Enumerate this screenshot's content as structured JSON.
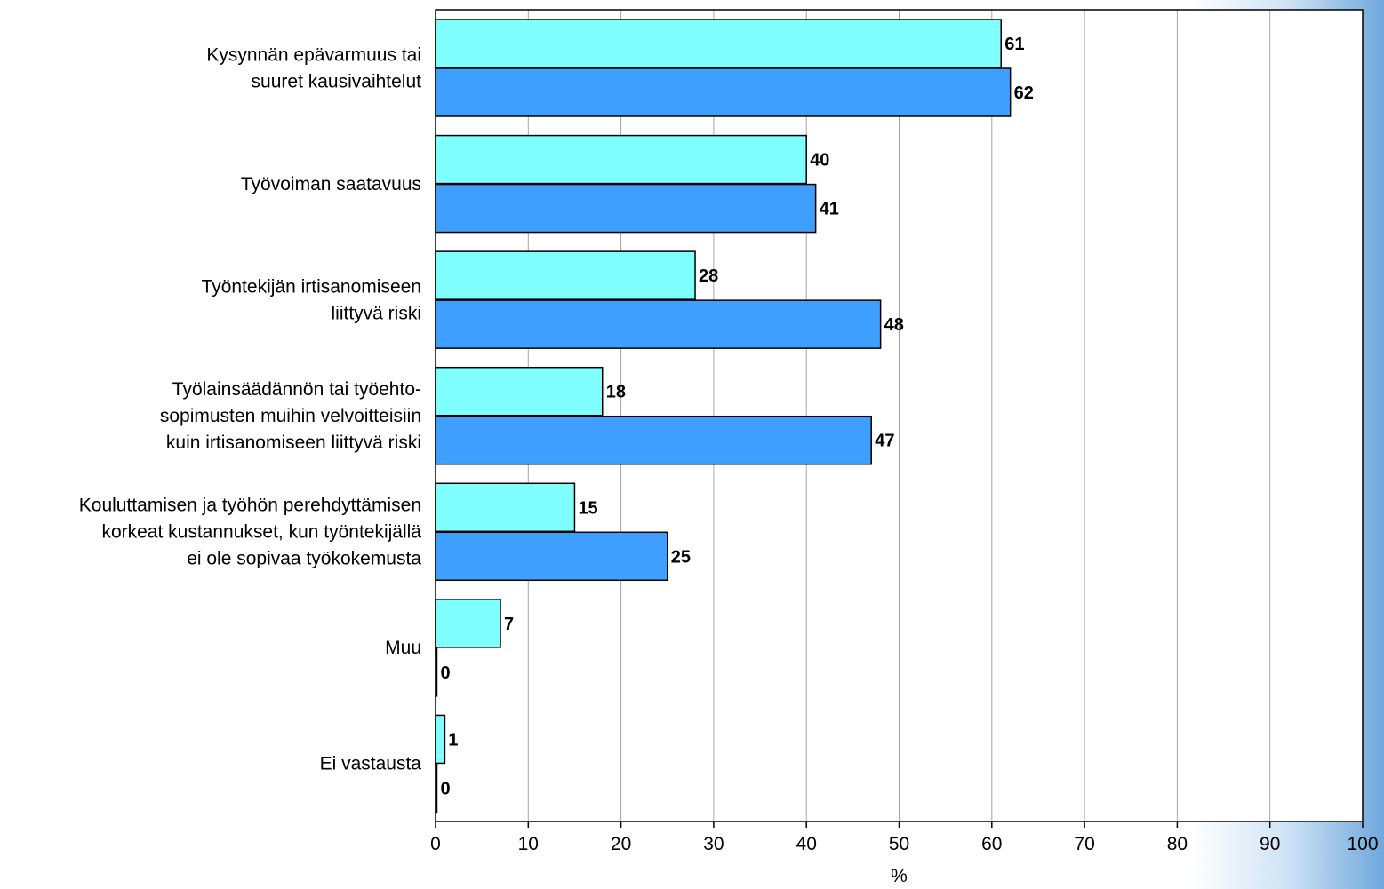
{
  "colors": {
    "series_1": "#80ffff",
    "series_2": "#3f9fff",
    "grid": "#a6a6a6",
    "axis": "#000000"
  },
  "chart_data": {
    "type": "bar",
    "orientation": "horizontal",
    "categories": [
      [
        "Kysynnän epävarmuus tai",
        "suuret kausivaihtelut"
      ],
      [
        "Työvoiman saatavuus"
      ],
      [
        "Työntekijän irtisanomiseen",
        "liittyvä riski"
      ],
      [
        "Työlainsäädännön tai työehto-",
        "sopimusten muihin velvoitteisiin",
        "kuin irtisanomiseen liittyvä riski"
      ],
      [
        "Kouluttamisen ja työhön perehdyttämisen",
        "korkeat kustannukset, kun työntekijällä",
        "ei ole sopivaa työkokemusta"
      ],
      [
        "Muu"
      ],
      [
        "Ei vastausta"
      ]
    ],
    "series": [
      {
        "values": [
          61,
          40,
          28,
          18,
          15,
          7,
          1
        ]
      },
      {
        "values": [
          62,
          41,
          48,
          47,
          25,
          0,
          0
        ]
      }
    ],
    "xlim": [
      0,
      100
    ],
    "xticks": [
      "0",
      "10",
      "20",
      "30",
      "40",
      "50",
      "60",
      "70",
      "80",
      "90",
      "100"
    ],
    "xlabel": "%",
    "grid": "vertical",
    "legend": "none"
  }
}
